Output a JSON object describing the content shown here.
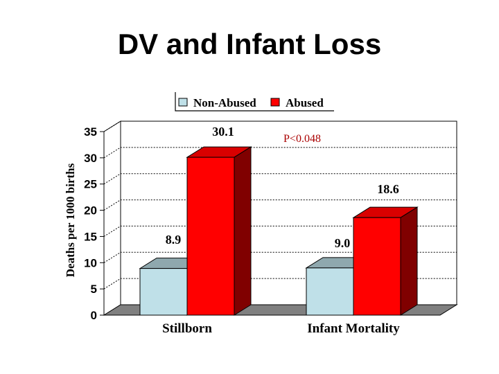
{
  "slide": {
    "title": "DV and Infant Loss"
  },
  "chart_data": {
    "type": "bar",
    "style": "3d-clustered",
    "categories": [
      "Stillborn",
      "Infant Mortality"
    ],
    "series": [
      {
        "name": "Non-Abused",
        "values": [
          8.9,
          9.0
        ],
        "color": "#bfe0e8"
      },
      {
        "name": "Abused",
        "values": [
          30.1,
          18.6
        ],
        "color": "#ff0000"
      }
    ],
    "data_labels": [
      "8.9",
      "30.1",
      "9.0",
      "18.6"
    ],
    "ylabel": "Deaths per 1000 births",
    "xlabel": "",
    "ylim": [
      0,
      35
    ],
    "yticks": [
      "0",
      "5",
      "10",
      "15",
      "20",
      "25",
      "30",
      "35"
    ],
    "grid": true,
    "legend_position": "top",
    "annotation": {
      "text": "P<0.048",
      "color": "#aa0000"
    }
  }
}
